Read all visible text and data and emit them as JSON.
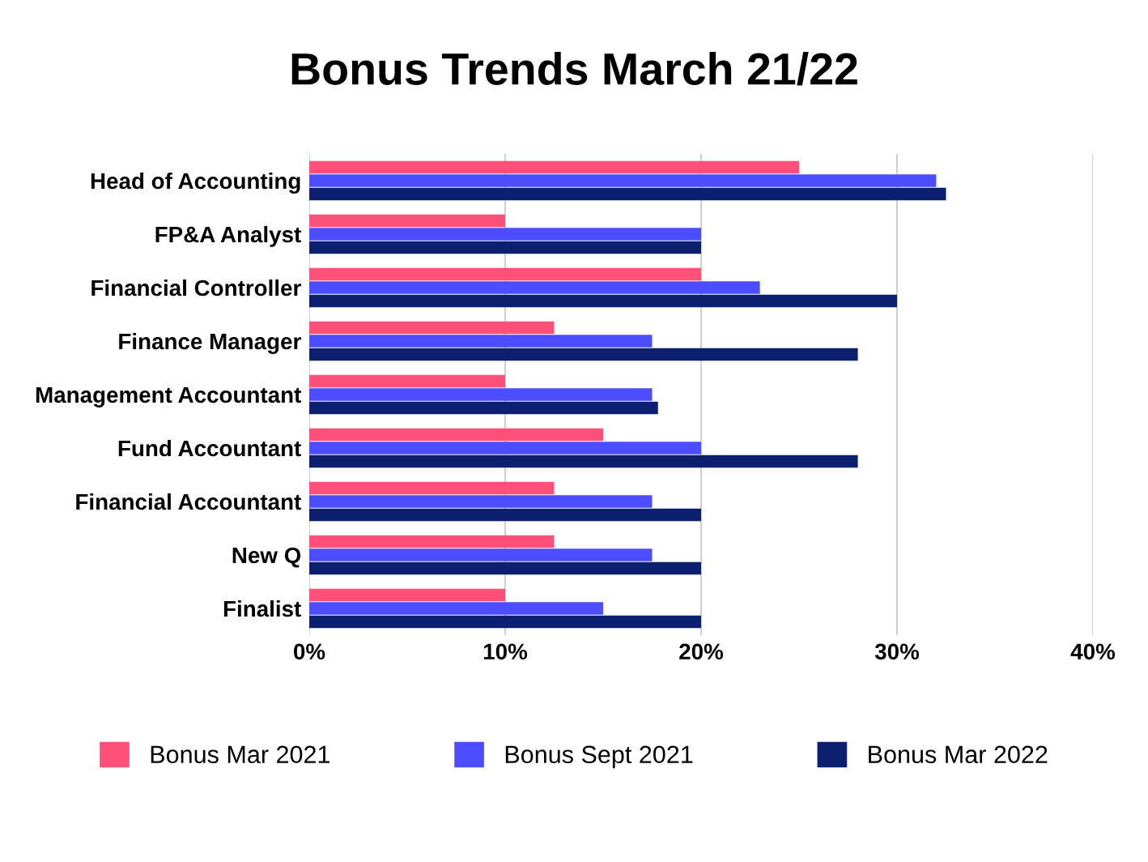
{
  "chart_data": {
    "type": "bar",
    "orientation": "horizontal",
    "title": "Bonus Trends March 21/22",
    "categories": [
      "Head of Accounting",
      "FP&A Analyst",
      "Financial Controller",
      "Finance Manager",
      "Management Accountant",
      "Fund Accountant",
      "Financial Accountant",
      "New Q",
      "Finalist"
    ],
    "series": [
      {
        "name": "Bonus Mar 2021",
        "color": "#ff5079",
        "values": [
          25,
          10,
          20,
          12.5,
          10,
          15,
          12.5,
          12.5,
          10
        ]
      },
      {
        "name": "Bonus Sept 2021",
        "color": "#4b4dff",
        "values": [
          32,
          20,
          23,
          17.5,
          17.5,
          20,
          17.5,
          17.5,
          15
        ]
      },
      {
        "name": "Bonus Mar 2022",
        "color": "#0d1f6f",
        "values": [
          32.5,
          20,
          30,
          28,
          17.8,
          28,
          20,
          20,
          20
        ]
      }
    ],
    "xlim": [
      0,
      40
    ],
    "xticks": [
      {
        "value": 0,
        "label": "0%"
      },
      {
        "value": 10,
        "label": "10%"
      },
      {
        "value": 20,
        "label": "20%"
      },
      {
        "value": 30,
        "label": "30%"
      },
      {
        "value": 40,
        "label": "40%"
      }
    ],
    "grid": "x",
    "legend": "bottom"
  }
}
